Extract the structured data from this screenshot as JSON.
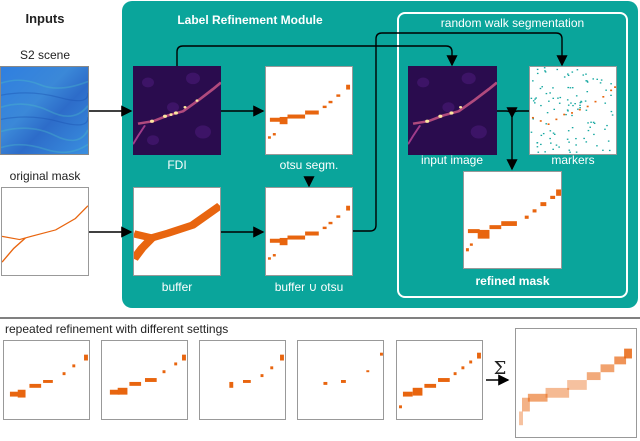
{
  "inputs": {
    "title": "Inputs",
    "s2_scene": "S2 scene",
    "original_mask": "original mask"
  },
  "module": {
    "title": "Label Refinement Module",
    "fdi": "FDI",
    "otsu": "otsu segm.",
    "buffer": "buffer",
    "buffer_union_otsu": "buffer ∪ otsu",
    "random_walk": {
      "title": "random walk segmentation",
      "input_image": "input image",
      "markers": "markers",
      "refined_mask": "refined mask"
    }
  },
  "repeated": {
    "caption": "repeated refinement with different settings",
    "sum_symbol": "Σ"
  },
  "colors": {
    "teal": "#0aa59b",
    "orange": "#e8650f",
    "marker_teal": "#14a7a0",
    "fdi_dark": "#2a0c4e"
  }
}
